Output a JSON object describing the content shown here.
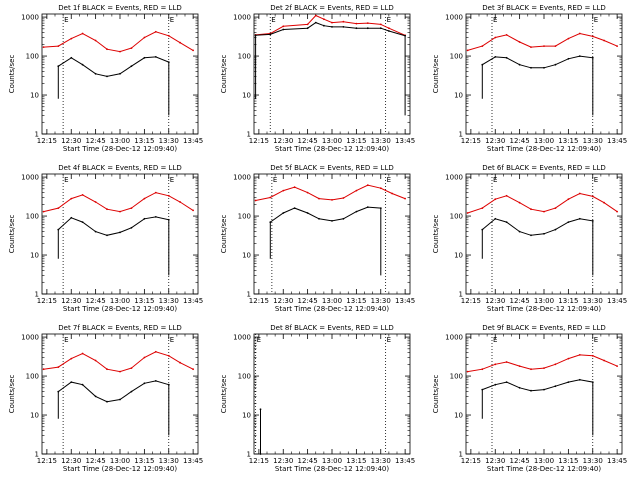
{
  "figure": {
    "x_ticks": [
      "12:15",
      "12:30",
      "12:45",
      "13:00",
      "13:15",
      "13:30",
      "13:45"
    ],
    "y_ticks": [
      "1",
      "10",
      "100",
      "1000"
    ],
    "xlabel": "Start Time (28-Dec-12 12:09:40)",
    "ylabel": "Counts/sec"
  },
  "colors": {
    "events": "#000000",
    "lld": "#dd0000",
    "background": "#ffffff"
  },
  "chart_data": [
    {
      "type": "line",
      "title": "Det 1f BLACK = Events, RED = LLD",
      "ylabel": "Counts/sec",
      "xlabel": "Start Time (28-Dec-12 12:09:40)",
      "y_scale": "log",
      "ylim": [
        1,
        1200
      ],
      "xlim": [
        "12:12",
        "13:48"
      ],
      "marker_lines": [
        "12:25",
        "13:30"
      ],
      "marker_label": "E",
      "series": [
        {
          "name": "BLACK = Events",
          "x": [
            "12:22",
            "12:30",
            "12:37",
            "12:45",
            "12:52",
            "13:00",
            "13:07",
            "13:15",
            "13:22",
            "13:30"
          ],
          "y": [
            55,
            90,
            60,
            35,
            30,
            35,
            55,
            90,
            95,
            70
          ]
        },
        {
          "name": "RED = LLD",
          "x": [
            "12:13",
            "12:22",
            "12:30",
            "12:37",
            "12:45",
            "12:52",
            "13:00",
            "13:07",
            "13:15",
            "13:22",
            "13:30",
            "13:37",
            "13:45"
          ],
          "y": [
            170,
            180,
            280,
            380,
            250,
            150,
            130,
            160,
            300,
            420,
            330,
            220,
            140
          ]
        }
      ]
    },
    {
      "type": "line",
      "title": "Det 2f BLACK = Events, RED = LLD",
      "ylabel": "Counts/sec",
      "xlabel": "Start Time (28-Dec-12 12:09:40)",
      "y_scale": "log",
      "ylim": [
        1,
        1200
      ],
      "xlim": [
        "12:12",
        "13:48"
      ],
      "marker_lines": [
        "12:22",
        "13:33"
      ],
      "marker_label": "E",
      "series": [
        {
          "name": "BLACK = Events",
          "x": [
            "12:13",
            "12:22",
            "12:30",
            "12:45",
            "12:50",
            "12:55",
            "13:00",
            "13:07",
            "13:15",
            "13:22",
            "13:30",
            "13:35",
            "13:45"
          ],
          "y": [
            340,
            360,
            480,
            520,
            720,
            600,
            560,
            560,
            520,
            520,
            520,
            440,
            330
          ]
        },
        {
          "name": "RED = LLD",
          "x": [
            "12:13",
            "12:22",
            "12:30",
            "12:45",
            "12:50",
            "12:55",
            "13:00",
            "13:07",
            "13:15",
            "13:22",
            "13:30",
            "13:35",
            "13:45"
          ],
          "y": [
            350,
            380,
            580,
            650,
            1100,
            880,
            720,
            760,
            680,
            700,
            650,
            520,
            340
          ]
        }
      ]
    },
    {
      "type": "line",
      "title": "Det 3f BLACK = Events, RED = LLD",
      "ylabel": "Counts/sec",
      "xlabel": "Start Time (28-Dec-12 12:09:40)",
      "y_scale": "log",
      "ylim": [
        1,
        1200
      ],
      "xlim": [
        "12:12",
        "13:48"
      ],
      "marker_lines": [
        "12:28",
        "13:30"
      ],
      "marker_label": "E",
      "series": [
        {
          "name": "BLACK = Events",
          "x": [
            "12:22",
            "12:30",
            "12:37",
            "12:45",
            "12:52",
            "13:00",
            "13:07",
            "13:15",
            "13:22",
            "13:30"
          ],
          "y": [
            60,
            95,
            90,
            60,
            50,
            50,
            60,
            85,
            100,
            90
          ]
        },
        {
          "name": "RED = LLD",
          "x": [
            "12:13",
            "12:22",
            "12:30",
            "12:37",
            "12:45",
            "12:52",
            "13:00",
            "13:07",
            "13:15",
            "13:22",
            "13:30",
            "13:37",
            "13:45"
          ],
          "y": [
            140,
            180,
            300,
            350,
            230,
            170,
            180,
            180,
            280,
            380,
            320,
            250,
            180
          ]
        }
      ]
    },
    {
      "type": "line",
      "title": "Det 4f BLACK = Events, RED = LLD",
      "ylabel": "Counts/sec",
      "xlabel": "Start Time (28-Dec-12 12:09:40)",
      "y_scale": "log",
      "ylim": [
        1,
        1200
      ],
      "xlim": [
        "12:12",
        "13:48"
      ],
      "marker_lines": [
        "12:25",
        "13:30"
      ],
      "marker_label": "E",
      "series": [
        {
          "name": "BLACK = Events",
          "x": [
            "12:22",
            "12:30",
            "12:37",
            "12:45",
            "12:52",
            "13:00",
            "13:07",
            "13:15",
            "13:22",
            "13:30"
          ],
          "y": [
            45,
            90,
            70,
            40,
            32,
            38,
            50,
            85,
            95,
            80
          ]
        },
        {
          "name": "RED = LLD",
          "x": [
            "12:13",
            "12:22",
            "12:30",
            "12:37",
            "12:45",
            "12:52",
            "13:00",
            "13:07",
            "13:15",
            "13:22",
            "13:30",
            "13:37",
            "13:45"
          ],
          "y": [
            130,
            160,
            280,
            350,
            230,
            150,
            130,
            160,
            280,
            400,
            330,
            230,
            140
          ]
        }
      ]
    },
    {
      "type": "line",
      "title": "Det 5f BLACK = Events, RED = LLD",
      "ylabel": "Counts/sec",
      "xlabel": "Start Time (28-Dec-12 12:09:40)",
      "y_scale": "log",
      "ylim": [
        1,
        1200
      ],
      "xlim": [
        "12:12",
        "13:48"
      ],
      "marker_lines": [
        "12:23",
        "13:33"
      ],
      "marker_label": "E",
      "series": [
        {
          "name": "BLACK = Events",
          "x": [
            "12:22",
            "12:30",
            "12:37",
            "12:45",
            "12:52",
            "13:00",
            "13:07",
            "13:15",
            "13:22",
            "13:30"
          ],
          "y": [
            70,
            120,
            160,
            120,
            85,
            75,
            85,
            130,
            170,
            160
          ]
        },
        {
          "name": "RED = LLD",
          "x": [
            "12:13",
            "12:22",
            "12:30",
            "12:37",
            "12:45",
            "12:52",
            "13:00",
            "13:07",
            "13:15",
            "13:22",
            "13:30",
            "13:37",
            "13:45"
          ],
          "y": [
            250,
            300,
            450,
            550,
            400,
            280,
            260,
            290,
            450,
            620,
            520,
            380,
            280
          ]
        }
      ]
    },
    {
      "type": "line",
      "title": "Det 6f BLACK = Events, RED = LLD",
      "ylabel": "Counts/sec",
      "xlabel": "Start Time (28-Dec-12 12:09:40)",
      "y_scale": "log",
      "ylim": [
        1,
        1200
      ],
      "xlim": [
        "12:12",
        "13:48"
      ],
      "marker_lines": [
        "12:28",
        "13:30"
      ],
      "marker_label": "E",
      "series": [
        {
          "name": "BLACK = Events",
          "x": [
            "12:22",
            "12:30",
            "12:37",
            "12:45",
            "12:52",
            "13:00",
            "13:07",
            "13:15",
            "13:22",
            "13:30"
          ],
          "y": [
            45,
            85,
            70,
            40,
            32,
            35,
            45,
            70,
            85,
            75
          ]
        },
        {
          "name": "RED = LLD",
          "x": [
            "12:13",
            "12:22",
            "12:30",
            "12:37",
            "12:45",
            "12:52",
            "13:00",
            "13:07",
            "13:15",
            "13:22",
            "13:30",
            "13:37",
            "13:45"
          ],
          "y": [
            120,
            160,
            270,
            330,
            220,
            150,
            130,
            160,
            270,
            380,
            320,
            220,
            130
          ]
        }
      ]
    },
    {
      "type": "line",
      "title": "Det 7f BLACK = Events, RED = LLD",
      "ylabel": "Counts/sec",
      "xlabel": "Start Time (28-Dec-12 12:09:40)",
      "y_scale": "log",
      "ylim": [
        1,
        1200
      ],
      "xlim": [
        "12:12",
        "13:48"
      ],
      "marker_lines": [
        "12:25",
        "13:30"
      ],
      "marker_label": "E",
      "series": [
        {
          "name": "BLACK = Events",
          "x": [
            "12:22",
            "12:30",
            "12:37",
            "12:45",
            "12:52",
            "13:00",
            "13:07",
            "13:15",
            "13:22",
            "13:30"
          ],
          "y": [
            40,
            70,
            60,
            30,
            22,
            25,
            40,
            65,
            75,
            60
          ]
        },
        {
          "name": "RED = LLD",
          "x": [
            "12:13",
            "12:22",
            "12:30",
            "12:37",
            "12:45",
            "12:52",
            "13:00",
            "13:07",
            "13:15",
            "13:22",
            "13:30",
            "13:37",
            "13:45"
          ],
          "y": [
            150,
            170,
            280,
            380,
            250,
            150,
            130,
            160,
            300,
            420,
            330,
            220,
            150
          ]
        }
      ]
    },
    {
      "type": "line",
      "title": "Det 8f BLACK = Events, RED = LLD",
      "ylabel": "Counts/sec",
      "xlabel": "Start Time (28-Dec-12 12:09:40)",
      "y_scale": "log",
      "ylim": [
        1,
        1200
      ],
      "xlim": [
        "12:12",
        "13:48"
      ],
      "marker_lines": [
        "12:13",
        "13:33"
      ],
      "marker_label": "E",
      "series": [
        {
          "name": "BLACK = Events",
          "x": [
            "12:16",
            "12:16"
          ],
          "y": [
            14,
            1
          ]
        }
      ]
    },
    {
      "type": "line",
      "title": "Det 9f BLACK = Events, RED = LLD",
      "ylabel": "Counts/sec",
      "xlabel": "Start Time (28-Dec-12 12:09:40)",
      "y_scale": "log",
      "ylim": [
        1,
        1200
      ],
      "xlim": [
        "12:12",
        "13:48"
      ],
      "marker_lines": [
        "12:28",
        "13:30"
      ],
      "marker_label": "E",
      "series": [
        {
          "name": "BLACK = Events",
          "x": [
            "12:22",
            "12:30",
            "12:37",
            "12:45",
            "12:52",
            "13:00",
            "13:07",
            "13:15",
            "13:22",
            "13:30"
          ],
          "y": [
            45,
            60,
            70,
            50,
            42,
            45,
            55,
            70,
            80,
            70
          ]
        },
        {
          "name": "RED = LLD",
          "x": [
            "12:13",
            "12:22",
            "12:30",
            "12:37",
            "12:45",
            "12:52",
            "13:00",
            "13:07",
            "13:15",
            "13:22",
            "13:30",
            "13:37",
            "13:45"
          ],
          "y": [
            130,
            150,
            200,
            230,
            180,
            150,
            160,
            200,
            280,
            350,
            330,
            250,
            180
          ]
        }
      ]
    }
  ]
}
